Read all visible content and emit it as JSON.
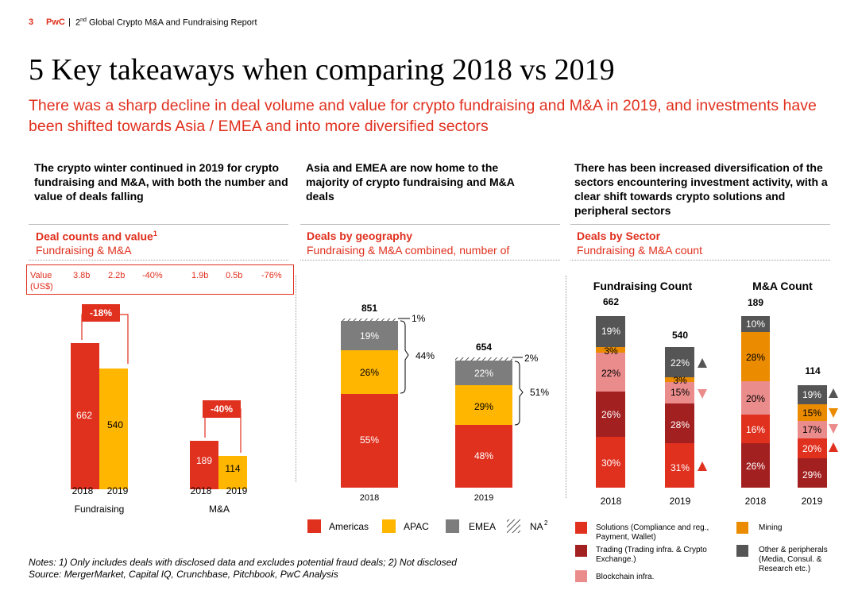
{
  "header": {
    "page_number": "3",
    "brand": "PwC",
    "separator": "|",
    "report_pre": "2",
    "report_sup": "nd",
    "report_post": " Global Crypto M&A and Fundraising Report"
  },
  "title": "5 Key takeaways when comparing 2018 vs 2019",
  "subtitle": "There was a sharp decline in deal volume and value for crypto fundraising and M&A in 2019, and investments have been shifted towards Asia / EMEA and into more diversified sectors",
  "columns": [
    {
      "heading": "The crypto winter continued in 2019 for crypto fundraising and M&A, with both the number and value of deals falling",
      "section_title": "Deal counts and value",
      "section_title_sup": "1",
      "section_subtitle": "Fundraising & M&A"
    },
    {
      "heading": "Asia and EMEA are now home to the majority of crypto fundraising and M&A deals",
      "section_title": "Deals by geography",
      "section_subtitle": "Fundraising & M&A combined, number of"
    },
    {
      "heading": "There has been increased diversification of the sectors encountering investment activity, with a clear shift towards crypto solutions and peripheral sectors",
      "section_title": "Deals by Sector",
      "section_subtitle": "Fundraising & M&A count"
    }
  ],
  "value_box": {
    "label_line1": "Value",
    "label_line2": "(US$)",
    "values": [
      "3.8b",
      "2.2b",
      "-40%",
      "1.9b",
      "0.5b",
      "-76%"
    ]
  },
  "colors": {
    "red": "#e0301e",
    "yellow": "#ffb600",
    "gray": "#7d7d7d",
    "dark_red": "#a32020",
    "pink": "#eb8c8c",
    "orange": "#eb8c00",
    "dark_gray": "#555555"
  },
  "chart_data": [
    {
      "type": "bar",
      "title": "Deal counts",
      "groups": [
        "Fundraising",
        "M&A"
      ],
      "categories": [
        "2018",
        "2019"
      ],
      "series": [
        {
          "name": "Fundraising",
          "values": [
            662,
            540
          ],
          "change": "-18%"
        },
        {
          "name": "M&A",
          "values": [
            189,
            114
          ],
          "change": "-40%"
        }
      ]
    },
    {
      "type": "bar",
      "stacked": true,
      "title": "Deals by geography",
      "categories": [
        "2018",
        "2019"
      ],
      "totals": [
        "851",
        "654"
      ],
      "series": [
        {
          "name": "Americas",
          "values": [
            "55%",
            "48%"
          ]
        },
        {
          "name": "APAC",
          "values": [
            "26%",
            "29%"
          ]
        },
        {
          "name": "EMEA",
          "values": [
            "19%",
            "22%"
          ]
        },
        {
          "name": "NA",
          "values": [
            "1%",
            "2%"
          ]
        }
      ],
      "brackets": [
        "44%",
        "51%"
      ],
      "legend_sup": "2"
    },
    {
      "type": "bar",
      "stacked": true,
      "title": "Fundraising Count",
      "categories": [
        "2018",
        "2019"
      ],
      "totals": [
        "662",
        "540"
      ],
      "series": [
        {
          "name": "Solutions",
          "values": [
            "30%",
            "31%"
          ],
          "trend_2019": "up"
        },
        {
          "name": "Trading",
          "values": [
            "26%",
            "28%"
          ]
        },
        {
          "name": "Blockchain infra.",
          "values": [
            "22%",
            "15%"
          ],
          "trend_2019": "down"
        },
        {
          "name": "Mining",
          "values": [
            "3%",
            "3%"
          ]
        },
        {
          "name": "Other & peripherals",
          "values": [
            "19%",
            "22%"
          ],
          "trend_2019": "up"
        }
      ]
    },
    {
      "type": "bar",
      "stacked": true,
      "title": "M&A Count",
      "categories": [
        "2018",
        "2019"
      ],
      "totals": [
        "189",
        "114"
      ],
      "series": [
        {
          "name": "Trading",
          "values": [
            "26%",
            "29%"
          ]
        },
        {
          "name": "Solutions",
          "values": [
            "16%",
            "20%"
          ],
          "trend_2019": "up"
        },
        {
          "name": "Blockchain infra.",
          "values": [
            "20%",
            "17%"
          ],
          "trend_2019": "down"
        },
        {
          "name": "Mining",
          "values": [
            "28%",
            "15%"
          ],
          "trend_2019": "down"
        },
        {
          "name": "Other & peripherals",
          "values": [
            "10%",
            "19%"
          ],
          "trend_2019": "up"
        }
      ]
    }
  ],
  "geo_legend": [
    "Americas",
    "APAC",
    "EMEA",
    "NA"
  ],
  "sector_legend": {
    "solutions": "Solutions (Compliance and reg., Payment, Wallet)",
    "trading": "Trading (Trading infra. & Crypto Exchange.)",
    "blockchain": "Blockchain infra.",
    "mining": "Mining",
    "other": "Other & peripherals (Media, Consul. & Research etc.)"
  },
  "notes": "Notes: 1) Only includes deals with disclosed data and excludes potential fraud deals; 2) Not disclosed",
  "source": "Source: MergerMarket, Capital IQ, Crunchbase, Pitchbook, PwC Analysis"
}
